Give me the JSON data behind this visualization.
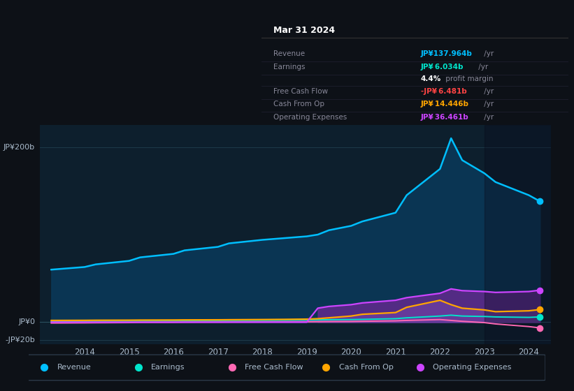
{
  "bg_color": "#0d1117",
  "plot_bg_color": "#0d1f2d",
  "title_box_bg": "#000000",
  "title": "Mar 31 2024",
  "info_rows": [
    {
      "label": "Revenue",
      "value": "JP¥137.964b /yr",
      "value_color": "#00bfff"
    },
    {
      "label": "Earnings",
      "value": "JP¥ 6.034b /yr",
      "value_color": "#00e5cc"
    },
    {
      "label": "",
      "value": "4.4% profit margin",
      "value_color": "#ffffff"
    },
    {
      "label": "Free Cash Flow",
      "value": "-JP¥ 6.481b /yr",
      "value_color": "#ff4444"
    },
    {
      "label": "Cash From Op",
      "value": "JP¥ 14.446b /yr",
      "value_color": "#ffa500"
    },
    {
      "label": "Operating Expenses",
      "value": "JP¥ 36.461b /yr",
      "value_color": "#cc44ff"
    }
  ],
  "years": [
    2013.25,
    2014,
    2014.25,
    2015,
    2015.25,
    2016,
    2016.25,
    2017,
    2017.25,
    2018,
    2018.5,
    2019,
    2019.25,
    2019.5,
    2020,
    2020.25,
    2021,
    2021.25,
    2022,
    2022.25,
    2022.5,
    2023,
    2023.25,
    2024,
    2024.25
  ],
  "revenue": [
    60,
    63,
    66,
    70,
    74,
    78,
    82,
    86,
    90,
    94,
    96,
    98,
    100,
    105,
    110,
    115,
    125,
    145,
    175,
    210,
    185,
    170,
    160,
    145,
    138
  ],
  "earnings": [
    1,
    1.2,
    1.3,
    1.5,
    1.6,
    1.8,
    1.9,
    2.0,
    2.1,
    2.2,
    2.3,
    2.5,
    2.6,
    2.8,
    3.0,
    3.2,
    4.0,
    5.0,
    7.0,
    8.0,
    7.0,
    6.5,
    6.0,
    5.5,
    6.0
  ],
  "free_cash": [
    -1,
    -0.8,
    -0.7,
    -0.5,
    -0.3,
    -0.2,
    0,
    0.1,
    0.2,
    0.3,
    0.4,
    0.5,
    0.6,
    0.7,
    0.8,
    1.0,
    1.5,
    2.0,
    3.0,
    2.0,
    1.0,
    -0.5,
    -2,
    -5,
    -6.5
  ],
  "cash_from_op": [
    2,
    2.1,
    2.2,
    2.3,
    2.4,
    2.5,
    2.6,
    2.7,
    2.8,
    3.0,
    3.2,
    3.5,
    4.0,
    5.0,
    7.0,
    9.0,
    11.0,
    17.0,
    25.0,
    20.0,
    16.0,
    14.0,
    12.0,
    13.0,
    14.4
  ],
  "op_expenses": [
    0,
    0,
    0,
    0,
    0,
    0,
    0,
    0,
    0,
    0,
    0,
    0,
    16,
    18,
    20,
    22,
    25,
    28,
    33,
    38,
    36,
    35,
    34,
    35,
    36.5
  ],
  "revenue_color": "#00bfff",
  "revenue_fill": "#0a3a5a",
  "earnings_color": "#00e5cc",
  "earnings_fill": "#00e5cc",
  "free_cash_color": "#ff69b4",
  "free_cash_fill": "#ff69b4",
  "cash_op_color": "#ffa500",
  "cash_op_fill": "#9b5de5",
  "op_exp_color": "#cc44ff",
  "op_exp_fill": "#5c2a8a",
  "axis_label_200": "JP¥200b",
  "axis_label_0": "JP¥0",
  "axis_label_neg20": "-JP¥20b",
  "legend_items": [
    {
      "label": "Revenue",
      "color": "#00bfff"
    },
    {
      "label": "Earnings",
      "color": "#00e5cc"
    },
    {
      "label": "Free Cash Flow",
      "color": "#ff69b4"
    },
    {
      "label": "Cash From Op",
      "color": "#ffa500"
    },
    {
      "label": "Operating Expenses",
      "color": "#cc44ff"
    }
  ],
  "xlim": [
    2013.0,
    2024.5
  ],
  "ylim": [
    -25,
    225
  ],
  "xticks": [
    2014,
    2015,
    2016,
    2017,
    2018,
    2019,
    2020,
    2021,
    2022,
    2023,
    2024
  ],
  "grid_color": "#1e3a4a",
  "text_color": "#aabbcc"
}
